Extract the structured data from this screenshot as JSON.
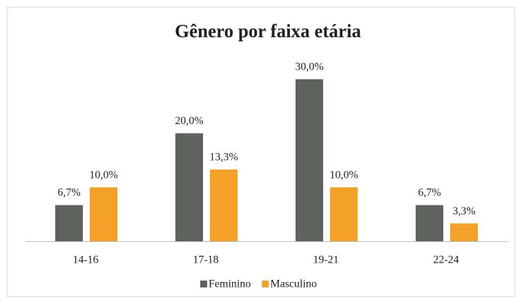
{
  "chart_data": {
    "type": "bar",
    "title": "Gênero por faixa etária",
    "categories": [
      "14-16",
      "17-18",
      "19-21",
      "22-24"
    ],
    "series": [
      {
        "name": "Feminino",
        "color": "#5f635e",
        "values": [
          6.7,
          20.0,
          30.0,
          6.7
        ],
        "value_labels": [
          "6,7%",
          "20,0%",
          "30,0%",
          "6,7%"
        ]
      },
      {
        "name": "Masculino",
        "color": "#f4a12a",
        "values": [
          10.0,
          13.3,
          10.0,
          3.3
        ],
        "value_labels": [
          "10,0%",
          "13,3%",
          "10,0%",
          "3,3%"
        ]
      }
    ],
    "legend": "bottom"
  }
}
